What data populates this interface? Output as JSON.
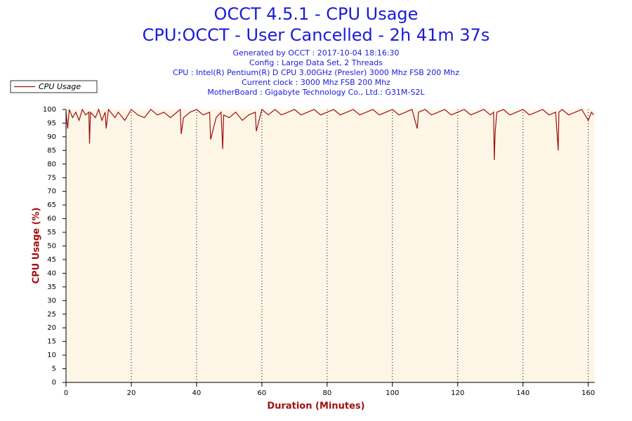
{
  "chart_data": {
    "type": "line",
    "title": "OCCT 4.5.1 - CPU Usage",
    "subtitle": "CPU:OCCT - User Cancelled - 2h 41m 37s",
    "info_lines": [
      "Generated by OCCT : 2017-10-04 18:16:30",
      "Config : Large Data Set, 2 Threads",
      "CPU : Intel(R) Pentium(R) D CPU 3.00GHz (Presler) 3000 Mhz FSB 200 Mhz",
      "Current clock : 3000 Mhz FSB 200 Mhz",
      "MotherBoard : Gigabyte Technology Co., Ltd.: G31M-S2L"
    ],
    "x_label": "Duration (Minutes)",
    "y_label": "CPU Usage (%)",
    "x": [
      0,
      0.5,
      1,
      2,
      3,
      4,
      5,
      6,
      7,
      7.2,
      7.5,
      9,
      10,
      11,
      12,
      12.3,
      13,
      15,
      16,
      18,
      20,
      22,
      24,
      26,
      28,
      30,
      32,
      34,
      35,
      35.3,
      36,
      38,
      40,
      42,
      44,
      44.3,
      46,
      47.5,
      48,
      48.3,
      50,
      52,
      54,
      56,
      58,
      58.3,
      60,
      62,
      64,
      66,
      68,
      70,
      72,
      74,
      76,
      78,
      80,
      82,
      84,
      86,
      88,
      90,
      92,
      94,
      96,
      98,
      100,
      102,
      104,
      106,
      107.6,
      108,
      110,
      112,
      114,
      116,
      118,
      120,
      122,
      124,
      126,
      128,
      130,
      131,
      131.2,
      131.5,
      132,
      134,
      136,
      138,
      140,
      142,
      144,
      146,
      148,
      150,
      150.8,
      151,
      152,
      154,
      156,
      158,
      160,
      161,
      161.6
    ],
    "series": [
      {
        "name": "CPU Usage",
        "color": "#a01010",
        "values": [
          99,
          93,
          100,
          97,
          99,
          96,
          100,
          98,
          99,
          87.5,
          99,
          97,
          100,
          96,
          99,
          93,
          100,
          97,
          99,
          96,
          100,
          98,
          97,
          100,
          98,
          99,
          97,
          99,
          100,
          91,
          97,
          99,
          100,
          98,
          99,
          89,
          97,
          99,
          85.5,
          98,
          97,
          99,
          96,
          98,
          99,
          92,
          100,
          98,
          100,
          98,
          99,
          100,
          98,
          99,
          100,
          98,
          99,
          100,
          98,
          99,
          100,
          98,
          99,
          100,
          98,
          99,
          100,
          98,
          99,
          100,
          93,
          99,
          100,
          98,
          99,
          100,
          98,
          99,
          100,
          98,
          99,
          100,
          98,
          99,
          81.5,
          92,
          99,
          100,
          98,
          99,
          100,
          98,
          99,
          100,
          98,
          99,
          85,
          99,
          100,
          98,
          99,
          100,
          96,
          99,
          98
        ]
      }
    ],
    "xlim": [
      0,
      162
    ],
    "ylim": [
      0,
      100
    ],
    "xticks": [
      0,
      20,
      40,
      60,
      80,
      100,
      120,
      140,
      160
    ],
    "yticks": [
      0,
      5,
      10,
      15,
      20,
      25,
      30,
      35,
      40,
      45,
      50,
      55,
      60,
      65,
      70,
      75,
      80,
      85,
      90,
      95,
      100
    ],
    "grid": true,
    "legend": "top-left"
  }
}
